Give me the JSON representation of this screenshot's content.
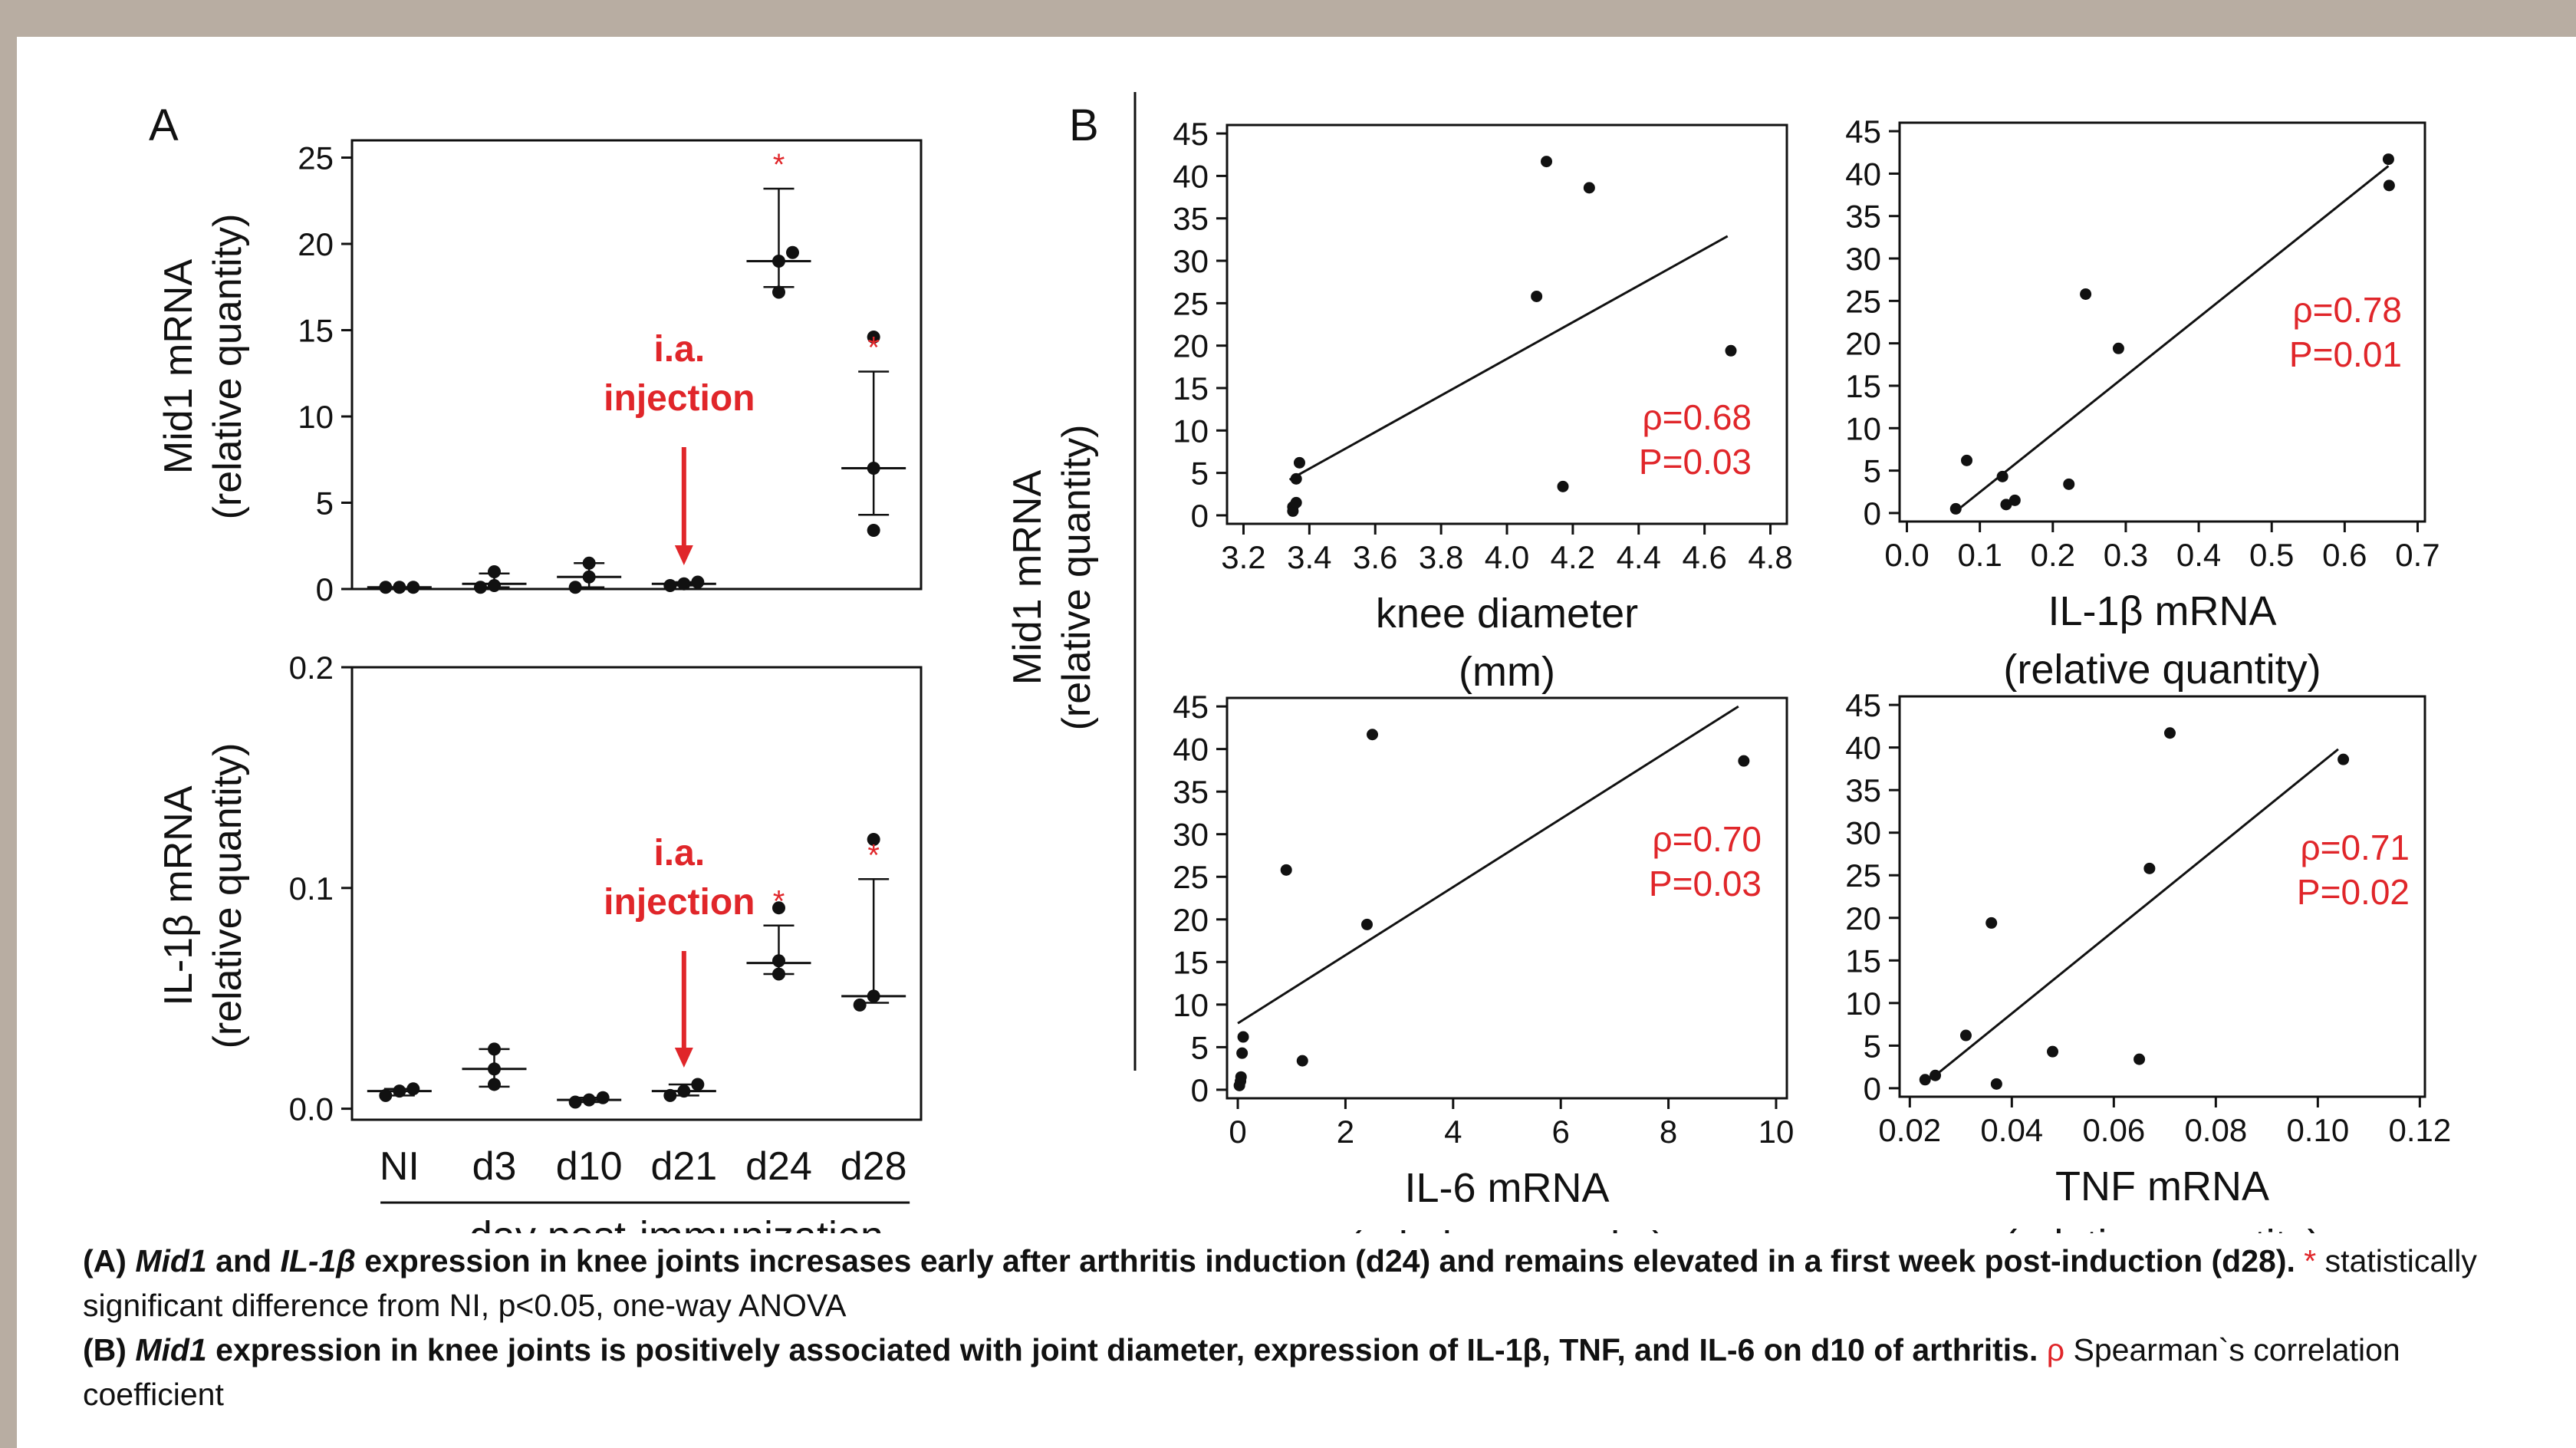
{
  "panels": {
    "a": "A",
    "b": "B"
  },
  "colors": {
    "background": "#b8ada2",
    "data": "#111111",
    "annotation": "#e0262a"
  },
  "chart_data": [
    {
      "id": "a_mid1",
      "type": "scatter",
      "ylabel": [
        "Mid1 mRNA",
        "(relative quantity)"
      ],
      "categories": [
        "NI",
        "d3",
        "d10",
        "d21",
        "d24",
        "d28"
      ],
      "ylim": [
        0,
        26
      ],
      "yticks": [
        "0",
        "5",
        "10",
        "15",
        "20",
        "25"
      ],
      "points": [
        [
          0.1,
          0.1,
          0.1
        ],
        [
          0.1,
          0.2,
          1.0
        ],
        [
          0.1,
          0.7,
          1.5
        ],
        [
          0.2,
          0.3,
          0.4
        ],
        [
          17.2,
          19.0,
          19.5
        ],
        [
          3.4,
          7.0,
          14.6
        ]
      ],
      "mean": [
        0.1,
        0.3,
        0.7,
        0.3,
        19.0,
        7.0
      ],
      "err_low": [
        0.1,
        0.1,
        0.1,
        0.2,
        17.5,
        4.3
      ],
      "err_high": [
        0.1,
        0.9,
        1.5,
        0.4,
        23.2,
        12.6
      ],
      "significance": [
        "",
        "",
        "",
        "",
        "*",
        "*"
      ],
      "annotation": {
        "lines": [
          "i.a.",
          "injection"
        ],
        "arrow_target": "d21"
      }
    },
    {
      "id": "a_il1b",
      "type": "scatter",
      "ylabel": [
        "IL-1β mRNA",
        "(relative quantity)"
      ],
      "categories": [
        "NI",
        "d3",
        "d10",
        "d21",
        "d24",
        "d28"
      ],
      "ylim": [
        -0.005,
        0.2
      ],
      "yticks": [
        "0.0",
        "0.1",
        "0.2"
      ],
      "points": [
        [
          0.006,
          0.008,
          0.009
        ],
        [
          0.011,
          0.018,
          0.027
        ],
        [
          0.003,
          0.004,
          0.005
        ],
        [
          0.006,
          0.008,
          0.011
        ],
        [
          0.061,
          0.067,
          0.091
        ],
        [
          0.047,
          0.051,
          0.122
        ]
      ],
      "mean": [
        0.008,
        0.018,
        0.004,
        0.008,
        0.066,
        0.051
      ],
      "err_low": [
        0.006,
        0.01,
        0.003,
        0.006,
        0.061,
        0.048
      ],
      "err_high": [
        0.009,
        0.027,
        0.005,
        0.011,
        0.083,
        0.104
      ],
      "significance": [
        "",
        "",
        "",
        "",
        "*",
        "*"
      ],
      "xlabel": "day post-immunization",
      "annotation": {
        "lines": [
          "i.a.",
          "injection"
        ],
        "arrow_target": "d21"
      }
    },
    {
      "id": "b_knee",
      "type": "scatter",
      "xlabel": [
        "knee diameter",
        "(mm)"
      ],
      "xlim": [
        3.15,
        4.85
      ],
      "xticks": [
        3.2,
        3.4,
        3.6,
        3.8,
        4.0,
        4.2,
        4.4,
        4.6,
        4.8
      ],
      "xtick_labels": [
        "3.2",
        "3.4",
        "3.6",
        "3.8",
        "4.0",
        "4.2",
        "4.4",
        "4.6",
        "4.8"
      ],
      "ylim": [
        -1,
        46
      ],
      "yticks": [
        "0",
        "5",
        "10",
        "15",
        "20",
        "25",
        "30",
        "35",
        "40",
        "45"
      ],
      "x": [
        3.35,
        3.35,
        3.36,
        3.36,
        3.37,
        4.09,
        4.12,
        4.17,
        4.25,
        4.68
      ],
      "y": [
        0.5,
        1.0,
        1.5,
        4.3,
        6.2,
        25.8,
        41.7,
        3.4,
        38.6,
        19.4
      ],
      "fit": {
        "x": [
          3.34,
          4.67
        ],
        "y": [
          4.2,
          32.9
        ]
      },
      "stats": [
        "ρ=0.68",
        "P=0.03"
      ]
    },
    {
      "id": "b_il1b",
      "type": "scatter",
      "xlabel": [
        "IL-1β mRNA",
        "(relative quantity)"
      ],
      "xlim": [
        -0.01,
        0.71
      ],
      "xticks": [
        0,
        0.1,
        0.2,
        0.3,
        0.4,
        0.5,
        0.6,
        0.7
      ],
      "xtick_labels": [
        "0.0",
        "0.1",
        "0.2",
        "0.3",
        "0.4",
        "0.5",
        "0.6",
        "0.7"
      ],
      "ylim": [
        -1,
        46
      ],
      "yticks": [
        "0",
        "5",
        "10",
        "15",
        "20",
        "25",
        "30",
        "35",
        "40",
        "45"
      ],
      "x": [
        0.067,
        0.082,
        0.131,
        0.136,
        0.148,
        0.222,
        0.245,
        0.29,
        0.66,
        0.661
      ],
      "y": [
        0.5,
        6.2,
        4.3,
        1.0,
        1.5,
        3.4,
        25.8,
        19.4,
        41.7,
        38.6
      ],
      "fit": {
        "x": [
          0.07,
          0.66
        ],
        "y": [
          0.4,
          40.9
        ]
      },
      "stats": [
        "ρ=0.78",
        "P=0.01"
      ]
    },
    {
      "id": "b_il6",
      "type": "scatter",
      "xlabel": [
        "IL-6 mRNA",
        "(relative quantity)"
      ],
      "xlim": [
        -0.2,
        10.2
      ],
      "xticks": [
        0,
        2,
        4,
        6,
        8,
        10
      ],
      "xtick_labels": [
        "0",
        "2",
        "4",
        "6",
        "8",
        "10"
      ],
      "ylim": [
        -1,
        46
      ],
      "yticks": [
        "0",
        "5",
        "10",
        "15",
        "20",
        "25",
        "30",
        "35",
        "40",
        "45"
      ],
      "x": [
        0.03,
        0.05,
        0.06,
        0.08,
        0.1,
        0.9,
        1.2,
        2.4,
        2.5,
        9.4
      ],
      "y": [
        0.5,
        1.0,
        1.5,
        4.3,
        6.2,
        25.8,
        3.4,
        19.4,
        41.7,
        38.6
      ],
      "fit": {
        "x": [
          0.0,
          9.3
        ],
        "y": [
          7.8,
          45.0
        ]
      },
      "stats": [
        "ρ=0.70",
        "P=0.03"
      ]
    },
    {
      "id": "b_tnf",
      "type": "scatter",
      "xlabel": [
        "TNF mRNA",
        "(relative quantity)"
      ],
      "xlim": [
        0.018,
        0.121
      ],
      "xticks": [
        0.02,
        0.04,
        0.06,
        0.08,
        0.1,
        0.12
      ],
      "xtick_labels": [
        "0.02",
        "0.04",
        "0.06",
        "0.08",
        "0.10",
        "0.12"
      ],
      "ylim": [
        -1,
        46
      ],
      "yticks": [
        "0",
        "5",
        "10",
        "15",
        "20",
        "25",
        "30",
        "35",
        "40",
        "45"
      ],
      "x": [
        0.023,
        0.025,
        0.031,
        0.036,
        0.037,
        0.048,
        0.065,
        0.067,
        0.071,
        0.105
      ],
      "y": [
        1.0,
        1.5,
        6.2,
        19.4,
        0.5,
        4.3,
        3.4,
        25.8,
        41.7,
        38.6
      ],
      "fit": {
        "x": [
          0.025,
          0.104
        ],
        "y": [
          1.5,
          39.8
        ]
      },
      "stats": [
        "ρ=0.71",
        "P=0.02"
      ]
    }
  ],
  "shared_ylabel_b": [
    "Mid1 mRNA",
    "(relative quantity)"
  ],
  "caption": {
    "a_label": "(A)",
    "a_gene1": "Mid1",
    "a_and": "and",
    "a_gene2": "IL-1β",
    "a_text": "expression in knee joints incresases early after arthritis induction (d24) and remains elevated in a first week post-induction (d28).",
    "a_star": "*",
    "a_note": "statistically significant difference from NI, p<0.05, one-way ANOVA",
    "b_label": "(B)",
    "b_gene": "Mid1",
    "b_text": "expression in knee joints is positively associated with joint diameter, expression of IL-1β, TNF, and IL-6 on d10 of arthritis.",
    "b_rho": "ρ",
    "b_note": "Spearman`s correlation coefficient"
  }
}
